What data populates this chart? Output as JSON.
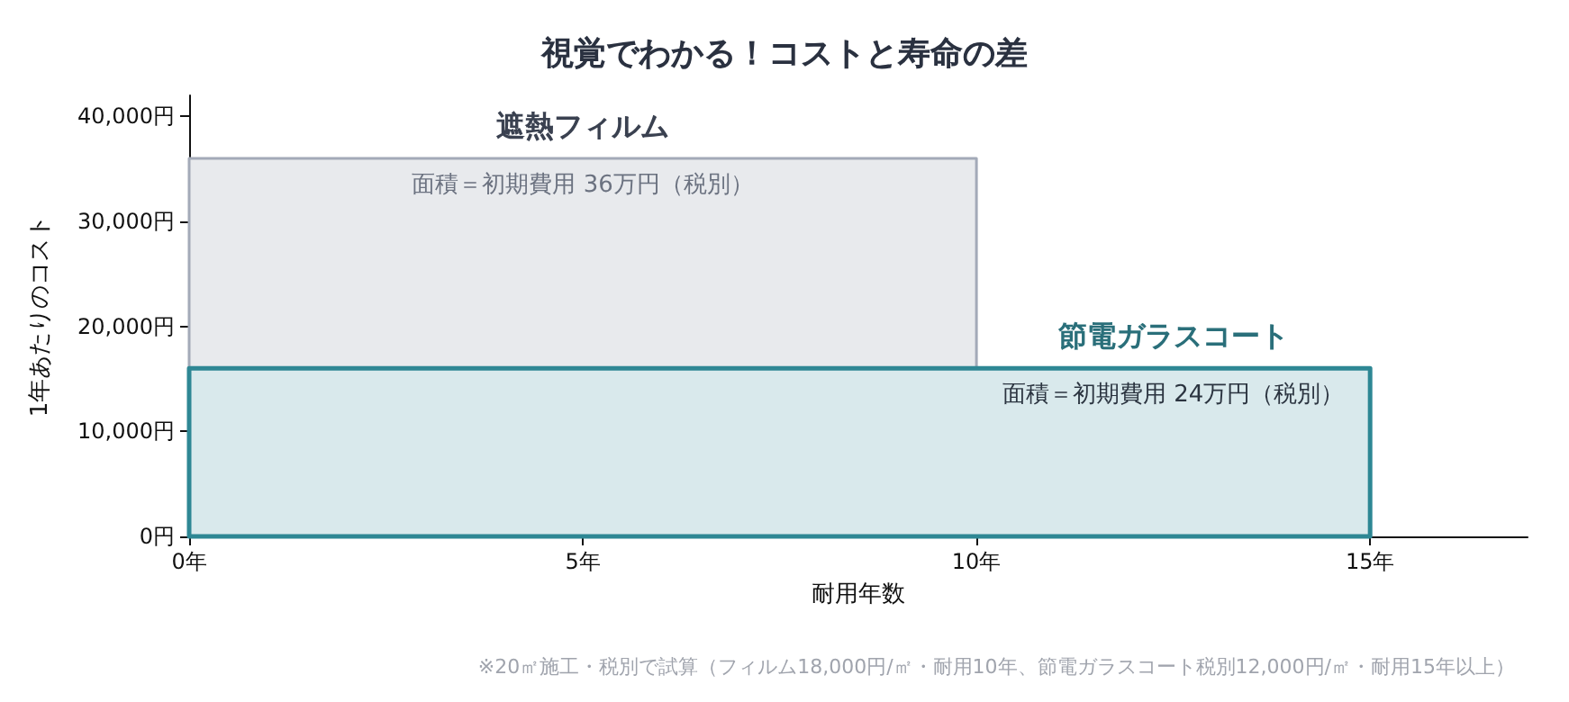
{
  "chart_data": {
    "type": "area",
    "title": "視覚でわかる！コストと寿命の差",
    "xlabel": "耐用年数",
    "ylabel": "1年あたりのコスト",
    "series": [
      {
        "name": "遮熱フィルム",
        "color": "#a3aab8",
        "x": [
          0,
          10
        ],
        "values": [
          36000,
          36000
        ]
      },
      {
        "name": "節電ガラスコート",
        "color": "#2e8794",
        "x": [
          0,
          15
        ],
        "values": [
          16000,
          16000
        ]
      }
    ],
    "xlim": [
      0,
      17
    ],
    "xticks": [
      {
        "value": 0,
        "label": "0年"
      },
      {
        "value": 5,
        "label": "5年"
      },
      {
        "value": 10,
        "label": "10年"
      },
      {
        "value": 15,
        "label": "15年"
      }
    ],
    "ylim": [
      0,
      42000
    ],
    "yticks": [
      {
        "value": 0,
        "label": "0円"
      },
      {
        "value": 10000,
        "label": "10,000円"
      },
      {
        "value": 20000,
        "label": "20,000円"
      },
      {
        "value": 30000,
        "label": "30,000円"
      },
      {
        "value": 40000,
        "label": "40,000円"
      }
    ],
    "annotations": [
      "面積＝初期費用 36万円（税別）",
      "面積＝初期費用 24万円（税別）",
      "※20㎡施工・税別で試算（フィルム18,000円/㎡・耐用10年、節電ガラスコート税別12,000円/㎡・耐用15年以上）"
    ],
    "grid": false,
    "legend": false
  }
}
